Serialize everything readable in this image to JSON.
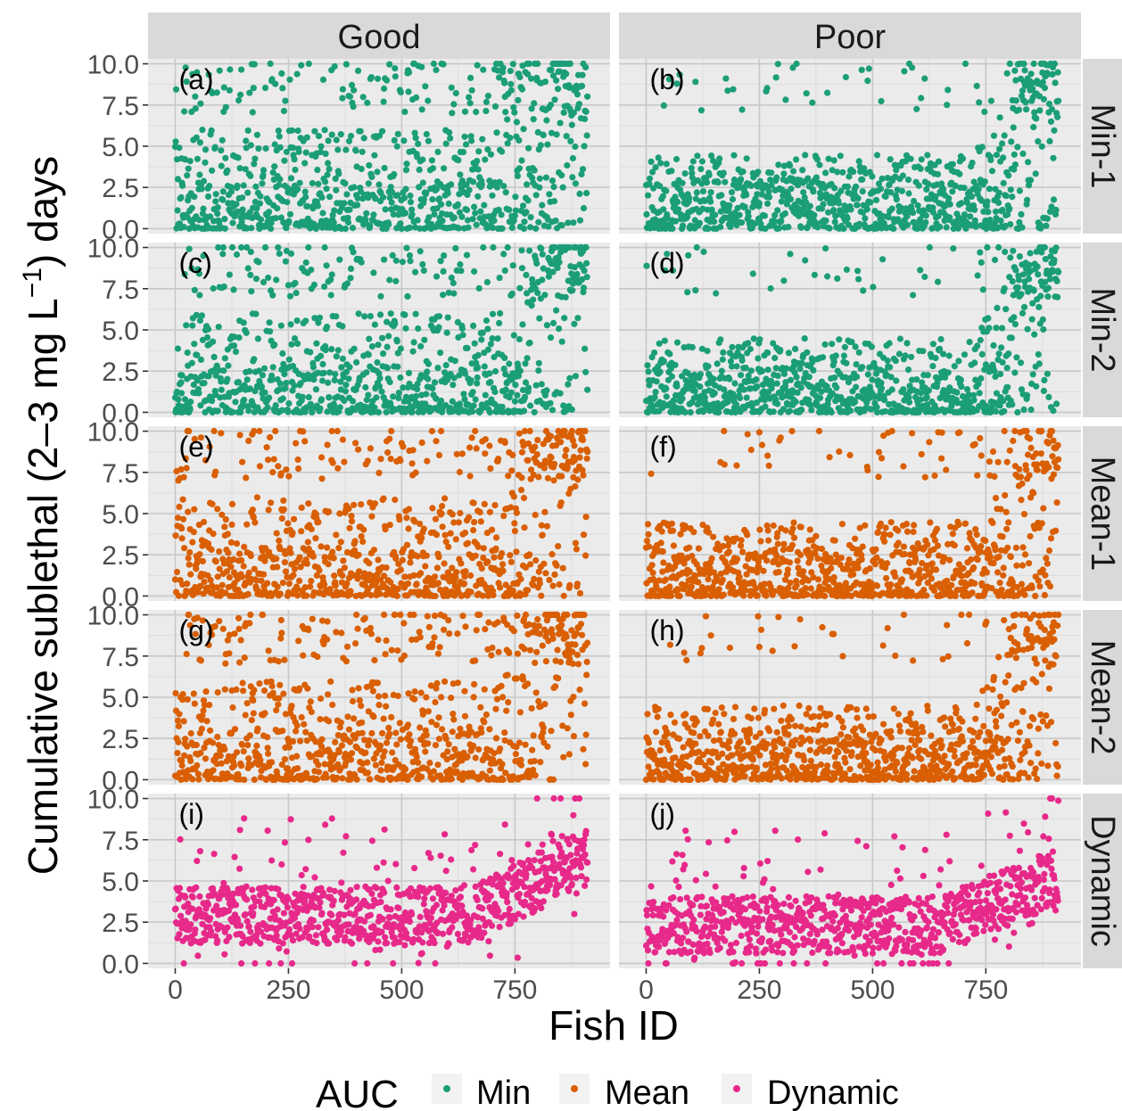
{
  "chart_data": {
    "type": "scatter",
    "facet_cols": [
      "Good",
      "Poor"
    ],
    "facet_rows": [
      "Min-1",
      "Min-2",
      "Mean-1",
      "Mean-2",
      "Dynamic"
    ],
    "panel_labels": [
      "(a)",
      "(b)",
      "(c)",
      "(d)",
      "(e)",
      "(f)",
      "(g)",
      "(h)",
      "(i)",
      "(j)"
    ],
    "xlabel": "Fish ID",
    "ylabel": {
      "prefix": "Cumulative sublethal (2–3  mg  L",
      "superscript": "−1",
      "suffix": ") days"
    },
    "xlim": [
      -60,
      960
    ],
    "ylim": [
      -0.3,
      10.3
    ],
    "xticks": [
      0,
      250,
      500,
      750
    ],
    "xtick_labels": [
      "0",
      "250",
      "500",
      "750"
    ],
    "yticks": [
      0,
      2.5,
      5,
      7.5,
      10
    ],
    "ytick_labels": [
      "0.0",
      "2.5",
      "5.0",
      "7.5",
      "10.0"
    ],
    "grid": true,
    "legend": {
      "title": "AUC",
      "position": "bottom",
      "entries": [
        {
          "name": "Min",
          "color": "#1b9e77"
        },
        {
          "name": "Mean",
          "color": "#d95f02"
        },
        {
          "name": "Dynamic",
          "color": "#e7298a"
        }
      ]
    },
    "series": [
      {
        "name": "Min",
        "color": "#1b9e77",
        "rows": [
          "Min-1",
          "Min-2"
        ]
      },
      {
        "name": "Mean",
        "color": "#d95f02",
        "rows": [
          "Mean-1",
          "Mean-2"
        ]
      },
      {
        "name": "Dynamic",
        "color": "#e7298a",
        "rows": [
          "Dynamic"
        ]
      }
    ],
    "fish_id_range": [
      0,
      910
    ],
    "points_per_panel": 910,
    "value_range": [
      0,
      10
    ]
  },
  "colors": {
    "panel_background": "#ebebeb",
    "strip_background": "#d9d9d9",
    "grid_major": "#c8c8c8",
    "grid_minor": "#dddddd"
  }
}
